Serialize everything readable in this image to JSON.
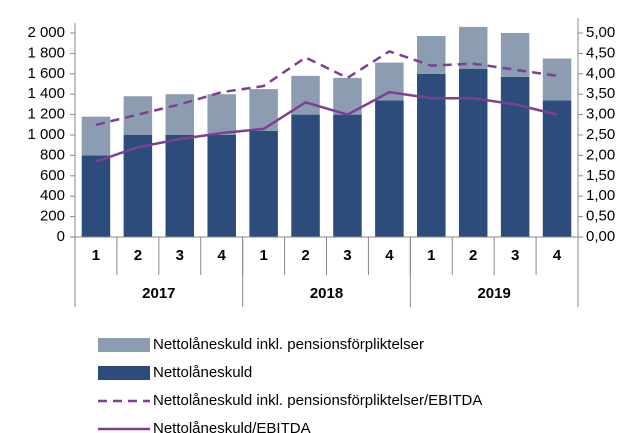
{
  "chart_data": {
    "type": "bar",
    "stacked": true,
    "categories": [
      "1",
      "2",
      "3",
      "4",
      "1",
      "2",
      "3",
      "4",
      "1",
      "2",
      "3",
      "4"
    ],
    "groups": [
      {
        "label": "2017",
        "size": 4
      },
      {
        "label": "2018",
        "size": 4
      },
      {
        "label": "2019",
        "size": 4
      }
    ],
    "series": [
      {
        "name": "Nettolåneskuld inkl. pensionsförpliktelser",
        "type": "bar",
        "color": "#8c9db2",
        "values": [
          380,
          380,
          400,
          400,
          410,
          380,
          360,
          370,
          370,
          410,
          430,
          410
        ]
      },
      {
        "name": "Nettolåneskuld",
        "type": "bar",
        "color": "#2c4c7c",
        "values": [
          800,
          1000,
          1000,
          1000,
          1040,
          1200,
          1200,
          1340,
          1600,
          1650,
          1570,
          1340
        ]
      },
      {
        "name": "Nettolåneskuld inkl. pensionsförpliktelser/EBITDA",
        "type": "line",
        "dash": true,
        "axis": "y2",
        "color": "#7d3f92",
        "values": [
          2.75,
          3.0,
          3.25,
          3.55,
          3.7,
          4.4,
          3.9,
          4.55,
          4.2,
          4.25,
          4.1,
          3.95
        ]
      },
      {
        "name": "Nettolåneskuld/EBITDA",
        "type": "line",
        "dash": false,
        "axis": "y2",
        "color": "#7d3f92",
        "values": [
          1.85,
          2.2,
          2.4,
          2.55,
          2.65,
          3.3,
          3.0,
          3.55,
          3.4,
          3.4,
          3.25,
          3.0
        ]
      }
    ],
    "stack_order": [
      1,
      0
    ],
    "ylim": [
      0,
      2000
    ],
    "yticks": [
      0,
      200,
      400,
      600,
      800,
      {
        "value": 1000,
        "label": "1 000"
      },
      {
        "value": 1200,
        "label": "1 200"
      },
      {
        "value": 1400,
        "label": "1 400"
      },
      {
        "value": 1600,
        "label": "1 600"
      },
      {
        "value": 1800,
        "label": "1 800"
      },
      {
        "value": 2000,
        "label": "2 000"
      }
    ],
    "y2lim": [
      0,
      5
    ],
    "y2ticks": [
      {
        "value": 0,
        "label": "0,00"
      },
      {
        "value": 0.5,
        "label": "0,50"
      },
      {
        "value": 1,
        "label": "1,00"
      },
      {
        "value": 1.5,
        "label": "1,50"
      },
      {
        "value": 2,
        "label": "2,00"
      },
      {
        "value": 2.5,
        "label": "2,50"
      },
      {
        "value": 3,
        "label": "3,00"
      },
      {
        "value": 3.5,
        "label": "3,50"
      },
      {
        "value": 4,
        "label": "4,00"
      },
      {
        "value": 4.5,
        "label": "4,50"
      },
      {
        "value": 5,
        "label": "5,00"
      }
    ],
    "legend_order": [
      0,
      1,
      2,
      3
    ]
  }
}
